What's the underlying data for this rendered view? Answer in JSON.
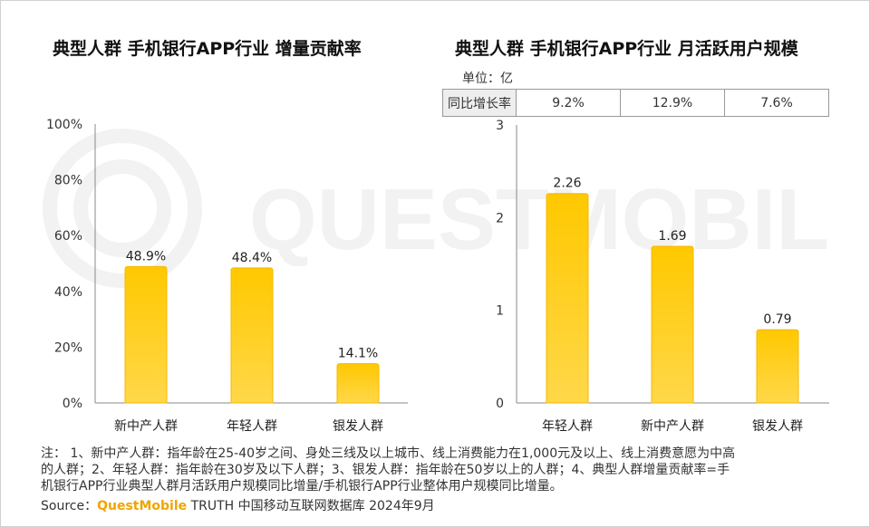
{
  "watermark": {
    "text": "QUESTMOBILE"
  },
  "chart_data": [
    {
      "type": "bar",
      "title": "典型人群 手机银行APP行业 增量贡献率",
      "categories": [
        "新中产人群",
        "年轻人群",
        "银发人群"
      ],
      "values": [
        48.9,
        48.4,
        14.1
      ],
      "value_labels": [
        "48.9%",
        "48.4%",
        "14.1%"
      ],
      "yticks": [
        0,
        20,
        40,
        60,
        80,
        100
      ],
      "ytick_labels": [
        "0%",
        "20%",
        "40%",
        "60%",
        "80%",
        "100%"
      ],
      "ylim": [
        0,
        100
      ],
      "colors": {
        "top": "#ffc800",
        "bottom": "#ffd84a",
        "border": "#f5b800"
      }
    },
    {
      "type": "bar",
      "title": "典型人群 手机银行APP行业 月活跃用户规模",
      "unit": "单位：亿",
      "categories": [
        "年轻人群",
        "新中产人群",
        "银发人群"
      ],
      "values": [
        2.26,
        1.69,
        0.79
      ],
      "value_labels": [
        "2.26",
        "1.69",
        "0.79"
      ],
      "yticks": [
        0,
        1,
        2,
        3
      ],
      "ytick_labels": [
        "0",
        "1",
        "2",
        "3"
      ],
      "ylim": [
        0,
        3
      ],
      "yoy_header": "同比增长率",
      "yoy_values": [
        "9.2%",
        "12.9%",
        "7.6%"
      ],
      "colors": {
        "top": "#ffc800",
        "bottom": "#ffd84a",
        "border": "#f5b800"
      }
    }
  ],
  "notes": {
    "lines": [
      "注：  1、新中产人群：指年龄在25-40岁之间、身处三线及以上城市、线上消费能力在1,000元及以上、线上消费意愿为中高",
      "的人群；2、年轻人群：指年龄在30岁及以下人群；3、银发人群：指年龄在50岁以上的人群；4、典型人群增量贡献率=手",
      "机银行APP行业典型人群月活跃用户规模同比增量/手机银行APP行业整体用户规模同比增量。"
    ],
    "source_label": "Source：",
    "source_brand": "QuestMobile",
    "source_rest": " TRUTH 中国移动互联网数据库 2024年9月"
  }
}
